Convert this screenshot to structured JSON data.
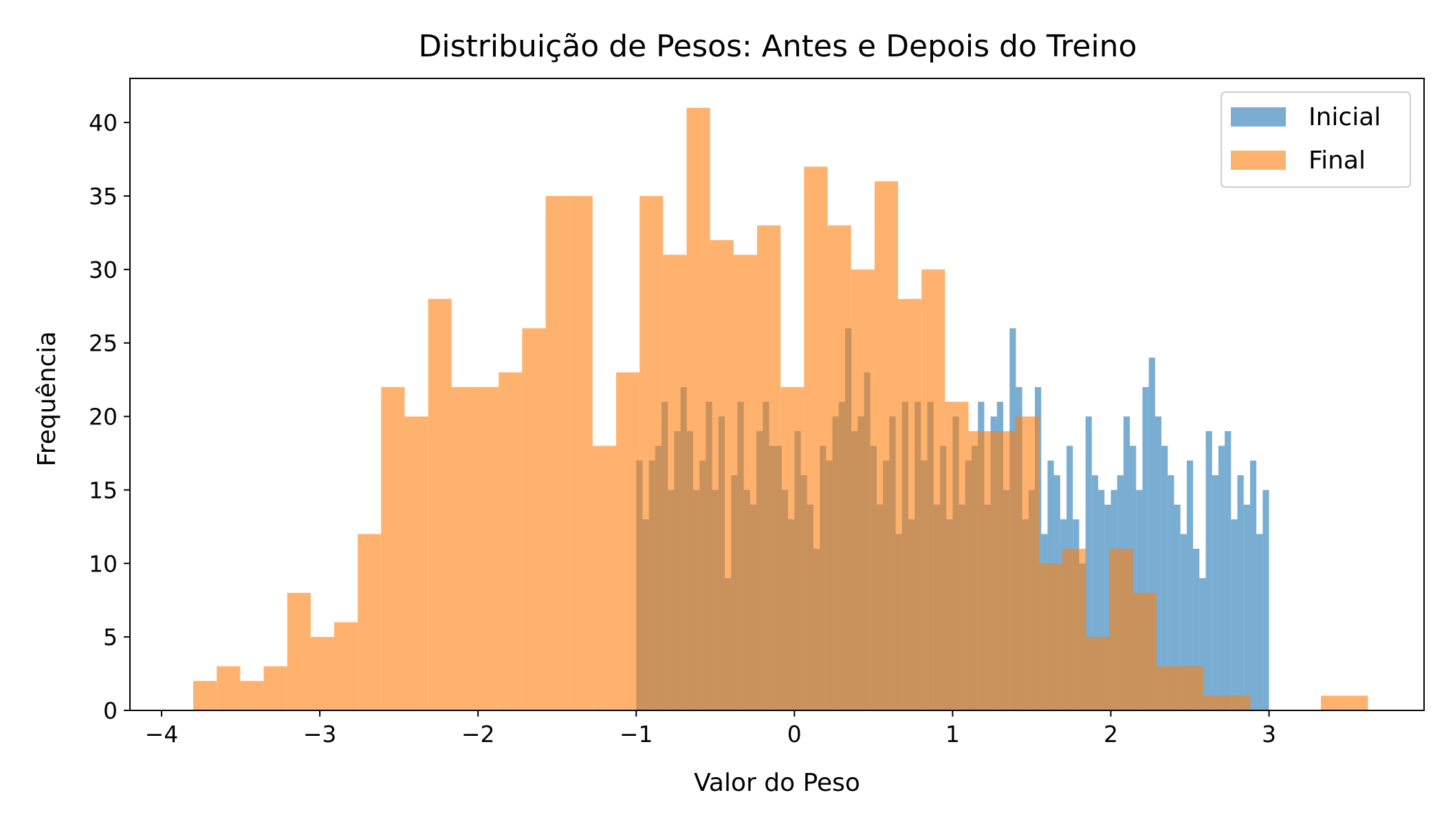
{
  "chart_data": {
    "type": "bar",
    "title": "Distribuição de Pesos: Antes e Depois do Treino",
    "xlabel": "Valor do Peso",
    "ylabel": "Frequência",
    "xlim": [
      -4.2,
      3.98
    ],
    "ylim": [
      0,
      43
    ],
    "xticks": [
      -4,
      -3,
      -2,
      -1,
      0,
      1,
      2,
      3
    ],
    "xtick_labels": [
      "−4",
      "−3",
      "−2",
      "−1",
      "0",
      "1",
      "2",
      "3"
    ],
    "yticks": [
      0,
      5,
      10,
      15,
      20,
      25,
      30,
      35,
      40
    ],
    "ytick_labels": [
      "0",
      "5",
      "10",
      "15",
      "20",
      "25",
      "30",
      "35",
      "40"
    ],
    "grid": false,
    "legend": "top-right",
    "series": [
      {
        "name": "Inicial",
        "color": "#1f77b4",
        "opacity": 0.6,
        "bin_start": -1.0,
        "bin_width": 0.04,
        "values": [
          17,
          13,
          17,
          18,
          21,
          15,
          19,
          22,
          19,
          15,
          17,
          21,
          15,
          20,
          9,
          16,
          21,
          15,
          14,
          19,
          21,
          18,
          18,
          15,
          13,
          19,
          16,
          14,
          11,
          18,
          17,
          20,
          21,
          26,
          19,
          20,
          23,
          18,
          14,
          17,
          20,
          12,
          21,
          13,
          21,
          17,
          21,
          14,
          18,
          13,
          20,
          14,
          17,
          18,
          21,
          14,
          20,
          21,
          15,
          26,
          22,
          13,
          15,
          22,
          12,
          17,
          16,
          13,
          18,
          13,
          10,
          20,
          16,
          15,
          14,
          15,
          16,
          20,
          18,
          15,
          22,
          24,
          20,
          18,
          16,
          14,
          12,
          17,
          11,
          9,
          19,
          16,
          18,
          19,
          13,
          16,
          14,
          17,
          12,
          15
        ]
      },
      {
        "name": "Final",
        "color": "#ff7f0e",
        "opacity": 0.6,
        "bin_start": -3.8,
        "bin_width": 0.1485,
        "values": [
          2,
          3,
          2,
          3,
          8,
          5,
          6,
          12,
          22,
          20,
          28,
          22,
          22,
          23,
          26,
          35,
          35,
          18,
          23,
          35,
          31,
          41,
          32,
          31,
          33,
          22,
          37,
          33,
          30,
          36,
          28,
          30,
          21,
          19,
          19,
          20,
          10,
          11,
          5,
          11,
          8,
          3,
          3,
          1,
          1,
          0,
          0,
          0,
          1,
          1
        ]
      }
    ]
  }
}
